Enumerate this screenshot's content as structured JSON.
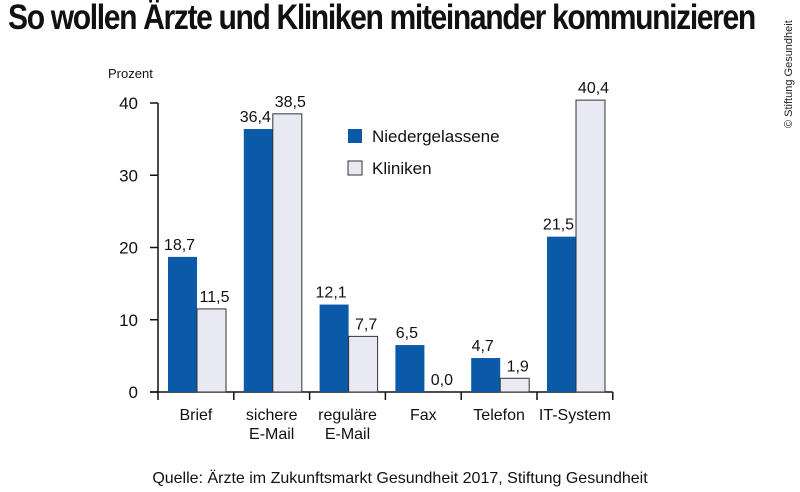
{
  "title": "So wollen Ärzte und Kliniken miteinander kommunizieren",
  "copyright": "© Stiftung Gesundheit",
  "source": "Quelle:  Ärzte im Zukunftsmarkt Gesundheit 2017, Stiftung Gesundheit",
  "chart_data": {
    "type": "bar",
    "title": "So wollen Ärzte und Kliniken miteinander kommunizieren",
    "ylabel": "Prozent",
    "ylim": [
      0,
      40
    ],
    "yticks": [
      0,
      10,
      20,
      30,
      40
    ],
    "categories": [
      [
        "Brief"
      ],
      [
        "sichere",
        "E-Mail"
      ],
      [
        "reguläre",
        "E-Mail"
      ],
      [
        "Fax"
      ],
      [
        "Telefon"
      ],
      [
        "IT-System"
      ]
    ],
    "series": [
      {
        "name": "Niedergelassene",
        "color": "#0a5aa8",
        "values": [
          18.7,
          36.4,
          12.1,
          6.5,
          4.7,
          21.5
        ],
        "labels": [
          "18,7",
          "36,4",
          "12,1",
          "6,5",
          "4,7",
          "21,5"
        ]
      },
      {
        "name": "Kliniken",
        "color": "#e8e9f2",
        "values": [
          11.5,
          38.5,
          7.7,
          0.0,
          1.9,
          40.4
        ],
        "labels": [
          "11,5",
          "38,5",
          "7,7",
          "0,0",
          "1,9",
          "40,4"
        ]
      }
    ],
    "legend": "top-center",
    "grid": false
  }
}
